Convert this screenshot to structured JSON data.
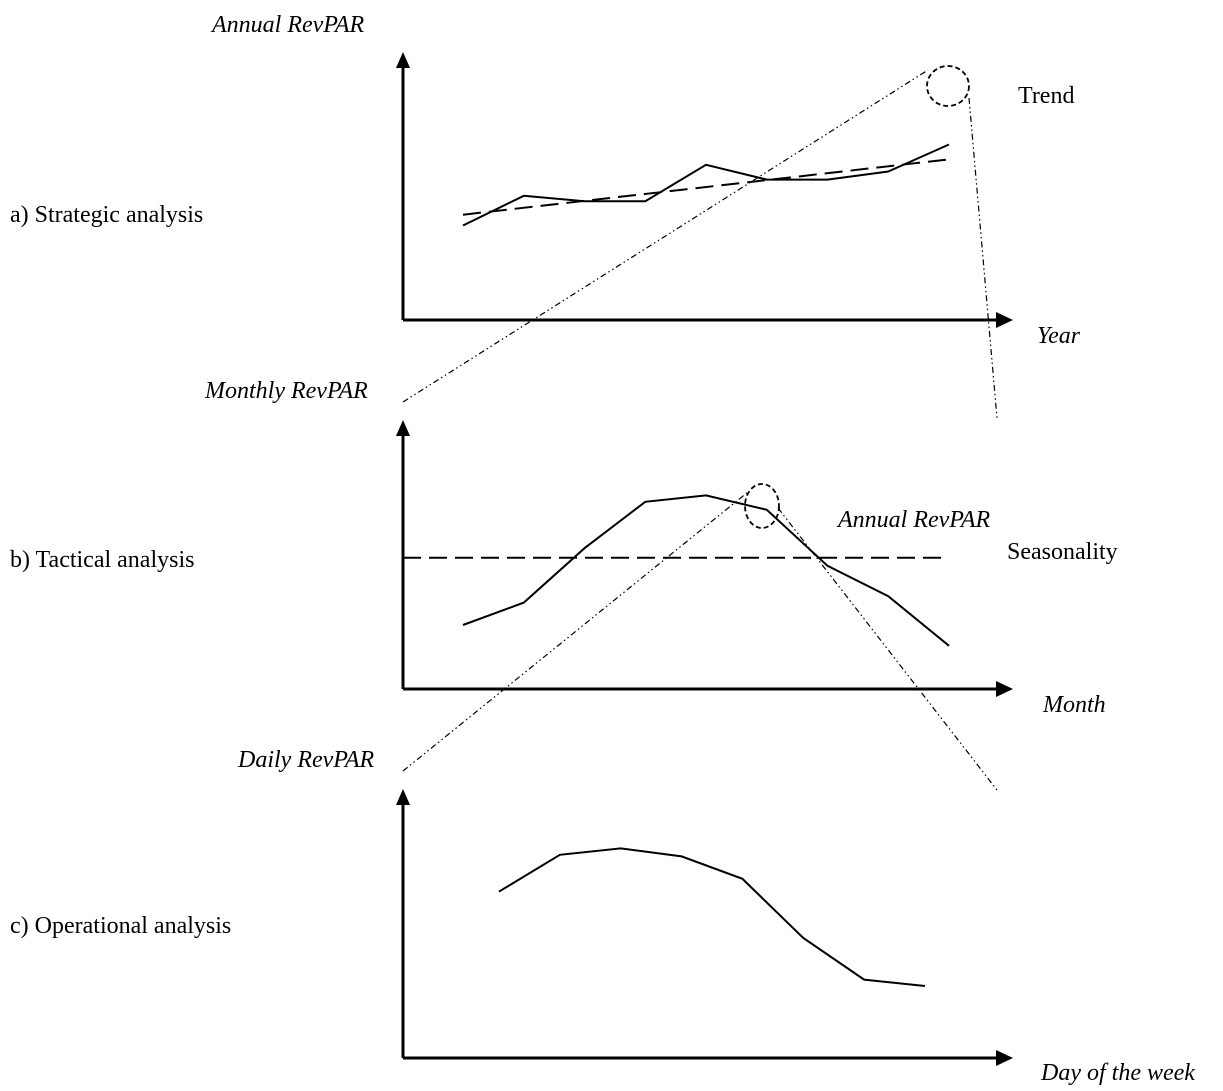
{
  "panels": [
    {
      "label": "a) Strategic analysis",
      "y_axis_label": "Annual RevPAR",
      "x_axis_label": "Year",
      "annotation": "Trend",
      "curve": [
        70,
        92,
        88,
        88,
        115,
        104,
        104,
        110,
        130
      ],
      "reference": "trend",
      "trend_line": [
        78,
        119
      ]
    },
    {
      "label": "b) Tactical analysis",
      "y_axis_label": "Monthly RevPAR",
      "x_axis_label": "Month",
      "annotation": "Seasonality",
      "secondary_annotation": "Annual RevPAR",
      "curve": [
        40,
        54,
        88,
        117,
        121,
        112,
        77,
        58,
        27
      ],
      "reference": "level",
      "level_value": 82
    },
    {
      "label": "c) Operational analysis",
      "y_axis_label": "Daily RevPAR",
      "x_axis_label": "Day of the week",
      "curve": [
        104,
        127,
        131,
        126,
        112,
        75,
        49,
        45
      ]
    }
  ]
}
